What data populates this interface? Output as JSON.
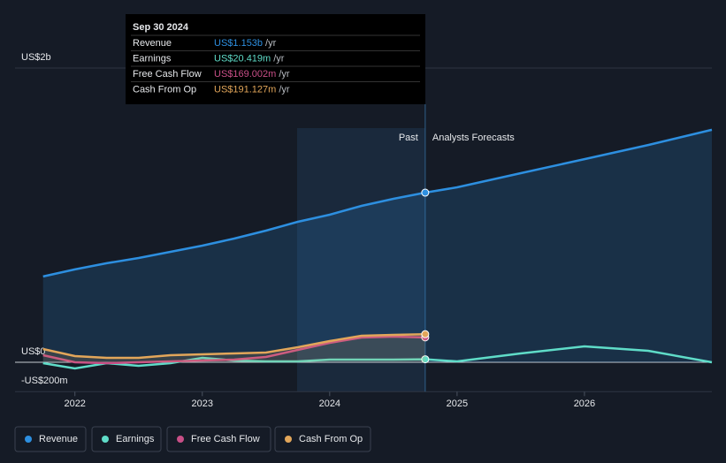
{
  "chart_data": {
    "type": "line",
    "x": [
      2021.75,
      2022,
      2022.25,
      2022.5,
      2022.75,
      2023,
      2023.25,
      2023.5,
      2023.75,
      2024,
      2024.25,
      2024.5,
      2024.75,
      2025,
      2025.5,
      2026,
      2026.5,
      2027
    ],
    "series": [
      {
        "name": "Revenue",
        "color": "#2d8fe0",
        "values": [
          583,
          631,
          673,
          709,
          751,
          793,
          841,
          895,
          955,
          1003,
          1063,
          1111,
          1153,
          1189,
          1285,
          1381,
          1477,
          1580
        ]
      },
      {
        "name": "Earnings",
        "color": "#5fdcc8",
        "values": [
          -6,
          -42,
          -6,
          -24,
          -6,
          30,
          12,
          6,
          6,
          18,
          18,
          18,
          20.419,
          6,
          60,
          108,
          78,
          0
        ]
      },
      {
        "name": "Free Cash Flow",
        "color": "#c84f87",
        "values": [
          48,
          0,
          -6,
          0,
          6,
          12,
          18,
          36,
          84,
          132,
          168,
          174,
          169.002,
          null,
          null,
          null,
          null,
          null
        ]
      },
      {
        "name": "Cash From Op",
        "color": "#e2a65a",
        "values": [
          90,
          42,
          30,
          30,
          48,
          54,
          60,
          66,
          102,
          144,
          180,
          186,
          191.127,
          null,
          null,
          null,
          null,
          null
        ]
      }
    ],
    "xlim": [
      2021.53,
      2027
    ],
    "xticks": [
      2022,
      2023,
      2024,
      2025,
      2026
    ],
    "ylim": [
      -200,
      2000
    ],
    "yticks": [
      {
        "value": 2000,
        "label": "US$2b"
      },
      {
        "value": 0,
        "label": "US$0"
      },
      {
        "value": -200,
        "label": "-US$200m"
      }
    ],
    "past_label": "Past",
    "forecast_label": "Analysts Forecasts",
    "tooltip": {
      "date": "Sep 30 2024",
      "rows": [
        {
          "label": "Revenue",
          "value": "US$1.153b",
          "unit": "/yr"
        },
        {
          "label": "Earnings",
          "value": "US$20.419m",
          "unit": "/yr"
        },
        {
          "label": "Free Cash Flow",
          "value": "US$169.002m",
          "unit": "/yr"
        },
        {
          "label": "Cash From Op",
          "value": "US$191.127m",
          "unit": "/yr"
        }
      ]
    }
  }
}
